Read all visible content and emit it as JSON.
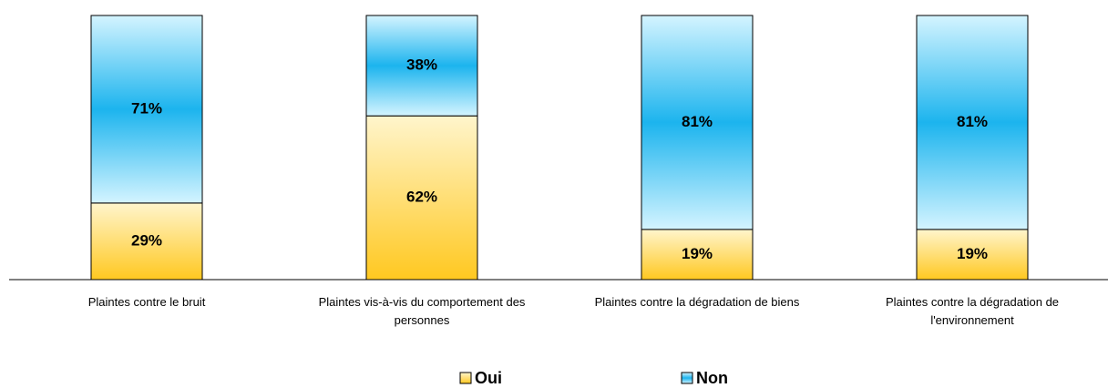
{
  "chart_data": {
    "type": "stacked_bar",
    "categories": [
      "Plaintes contre le bruit",
      "Plaintes vis-à-vis du comportement des personnes",
      "Plaintes contre la dégradation de biens",
      "Plaintes contre la dégradation de l'environnement"
    ],
    "series": [
      {
        "name": "Oui",
        "color": "#ffc820",
        "values": [
          29,
          62,
          19,
          19
        ],
        "value_labels": [
          "29%",
          "62%",
          "19%",
          "19%"
        ]
      },
      {
        "name": "Non",
        "color": "#1cb4ee",
        "values": [
          71,
          38,
          81,
          81
        ],
        "value_labels": [
          "71%",
          "38%",
          "81%",
          "81%"
        ]
      }
    ],
    "ylim": [
      0,
      100
    ]
  }
}
